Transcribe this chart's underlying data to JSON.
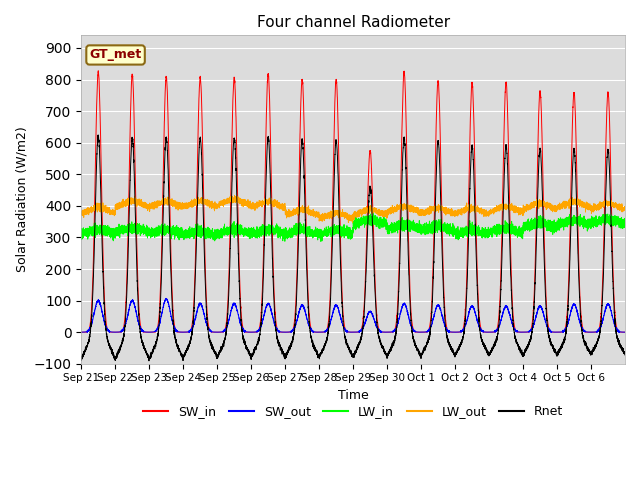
{
  "title": "Four channel Radiometer",
  "xlabel": "Time",
  "ylabel": "Solar Radiation (W/m2)",
  "ylim": [
    -100,
    940
  ],
  "yticks": [
    -100,
    0,
    100,
    200,
    300,
    400,
    500,
    600,
    700,
    800,
    900
  ],
  "bg_color": "#dcdcdc",
  "fig_color": "#ffffff",
  "annotation_text": "GT_met",
  "annotation_bg": "#ffffcc",
  "annotation_border": "#8B6914",
  "colors": {
    "SW_in": "#ff0000",
    "SW_out": "#0000ff",
    "LW_in": "#00ff00",
    "LW_out": "#ffa500",
    "Rnet": "#000000"
  },
  "n_days": 16,
  "x_labels": [
    "Sep 21",
    "Sep 22",
    "Sep 23",
    "Sep 24",
    "Sep 25",
    "Sep 26",
    "Sep 27",
    "Sep 28",
    "Sep 29",
    "Sep 30",
    "Oct 1",
    "Oct 2",
    "Oct 3",
    "Oct 4",
    "Oct 5",
    "Oct 6"
  ],
  "SW_in_peaks": [
    825,
    815,
    808,
    806,
    806,
    818,
    800,
    800,
    575,
    825,
    795,
    790,
    790,
    762,
    758,
    758
  ],
  "SW_out_peaks": [
    100,
    100,
    105,
    90,
    90,
    90,
    85,
    85,
    65,
    90,
    85,
    82,
    82,
    82,
    88,
    88
  ],
  "LW_in_base": [
    310,
    315,
    310,
    305,
    310,
    310,
    308,
    308,
    340,
    325,
    320,
    308,
    315,
    330,
    340,
    342
  ],
  "LW_out_base": [
    375,
    395,
    395,
    395,
    400,
    393,
    368,
    358,
    368,
    378,
    373,
    373,
    378,
    388,
    393,
    388
  ],
  "Rnet_peaks": [
    620,
    615,
    615,
    615,
    615,
    615,
    610,
    605,
    460,
    615,
    605,
    590,
    590,
    580,
    580,
    578
  ],
  "Rnet_night": [
    -85,
    -85,
    -85,
    -80,
    -80,
    -80,
    -80,
    -80,
    -78,
    -78,
    -75,
    -73,
    -73,
    -73,
    -72,
    -70
  ]
}
